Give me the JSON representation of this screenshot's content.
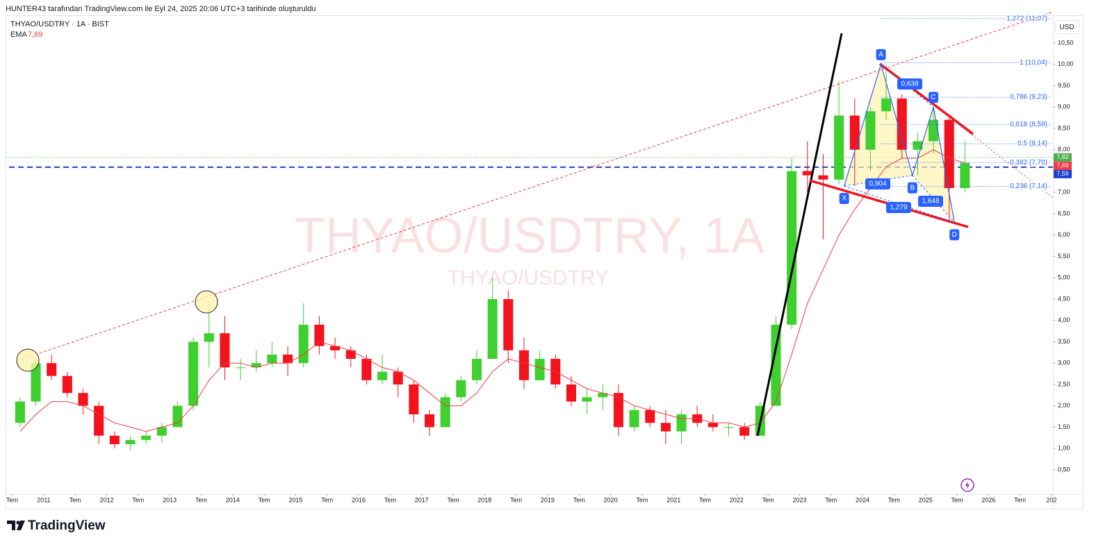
{
  "header": {
    "caption": "HUNTER43 tarafından TradingView.com ile Eyl 24, 2025 20:06 UTC+3 tarihinde oluşturuldu"
  },
  "footer": {
    "brand": "TradingView"
  },
  "chart_data": {
    "type": "candlestick",
    "title": "THYAO/USDTRY · 1A · BIST",
    "watermark": "THYAO/USDTRY, 1A",
    "watermark_sub": "THYAO/USDTRY",
    "currency": "USD",
    "x": [
      "2010-07",
      "2010-10",
      "2011-01",
      "2011-04",
      "2011-07",
      "2011-10",
      "2012-01",
      "2012-04",
      "2012-07",
      "2012-10",
      "2013-01",
      "2013-04",
      "2013-07",
      "2013-10",
      "2014-01",
      "2014-04",
      "2014-07",
      "2014-10",
      "2015-01",
      "2015-04",
      "2015-07",
      "2015-10",
      "2016-01",
      "2016-04",
      "2016-07",
      "2016-10",
      "2017-01",
      "2017-04",
      "2017-07",
      "2017-10",
      "2018-01",
      "2018-04",
      "2018-07",
      "2018-10",
      "2019-01",
      "2019-04",
      "2019-07",
      "2019-10",
      "2020-01",
      "2020-04",
      "2020-07",
      "2020-10",
      "2021-01",
      "2021-04",
      "2021-07",
      "2021-10",
      "2022-01",
      "2022-04",
      "2022-07",
      "2022-10",
      "2023-01",
      "2023-04",
      "2023-07",
      "2023-10",
      "2024-01",
      "2024-04",
      "2024-07",
      "2024-10",
      "2025-01",
      "2025-04",
      "2025-07"
    ],
    "open": [
      1.6,
      2.1,
      3.0,
      2.7,
      2.3,
      2.0,
      1.3,
      1.1,
      1.2,
      1.3,
      1.5,
      2.0,
      3.5,
      3.7,
      2.9,
      2.9,
      3.0,
      3.2,
      3.0,
      3.9,
      3.4,
      3.3,
      3.1,
      2.6,
      2.8,
      2.5,
      1.8,
      1.5,
      2.2,
      2.6,
      3.1,
      4.5,
      3.3,
      2.6,
      3.1,
      2.5,
      2.1,
      2.2,
      2.3,
      1.5,
      1.9,
      1.6,
      1.4,
      1.8,
      1.6,
      1.5,
      1.5,
      1.3,
      2.0,
      3.9,
      7.5,
      7.4,
      7.3,
      8.8,
      8.0,
      8.9,
      9.2,
      8.0,
      8.2,
      8.7,
      7.1
    ],
    "high": [
      2.2,
      3.1,
      3.2,
      2.8,
      2.4,
      2.1,
      1.4,
      1.3,
      1.4,
      1.6,
      2.1,
      3.6,
      4.45,
      4.1,
      3.1,
      3.3,
      3.5,
      3.4,
      4.4,
      4.1,
      3.6,
      3.4,
      3.2,
      3.2,
      2.9,
      2.6,
      1.9,
      2.3,
      2.7,
      3.3,
      5.0,
      4.7,
      3.6,
      3.3,
      3.2,
      2.7,
      2.4,
      2.5,
      2.5,
      2.0,
      2.0,
      1.9,
      1.9,
      2.0,
      1.8,
      1.6,
      1.6,
      2.1,
      4.1,
      7.8,
      8.2,
      7.9,
      9.6,
      9.2,
      9.0,
      10.0,
      9.3,
      8.4,
      9.0,
      8.8,
      8.2
    ],
    "low": [
      1.5,
      2.0,
      2.6,
      2.2,
      1.8,
      1.1,
      1.0,
      0.95,
      1.1,
      1.15,
      1.5,
      1.9,
      2.9,
      2.6,
      2.6,
      2.8,
      2.9,
      2.7,
      2.9,
      3.2,
      3.1,
      2.9,
      2.5,
      2.5,
      2.2,
      1.6,
      1.3,
      1.5,
      2.1,
      2.5,
      3.1,
      3.0,
      2.4,
      2.6,
      2.4,
      2.0,
      1.8,
      1.9,
      1.3,
      1.4,
      1.5,
      1.1,
      1.1,
      1.5,
      1.4,
      1.3,
      1.2,
      1.3,
      2.0,
      3.8,
      7.0,
      5.9,
      7.2,
      7.15,
      7.5,
      8.7,
      7.8,
      7.4,
      7.9,
      6.3,
      7.0
    ],
    "close": [
      2.1,
      3.0,
      2.7,
      2.3,
      2.0,
      1.3,
      1.1,
      1.2,
      1.3,
      1.5,
      2.0,
      3.5,
      3.7,
      2.9,
      2.9,
      3.0,
      3.2,
      3.0,
      3.9,
      3.4,
      3.3,
      3.1,
      2.6,
      2.8,
      2.5,
      1.8,
      1.5,
      2.2,
      2.6,
      3.1,
      4.5,
      3.3,
      2.6,
      3.1,
      2.5,
      2.1,
      2.2,
      2.3,
      1.5,
      1.9,
      1.6,
      1.4,
      1.8,
      1.6,
      1.5,
      1.5,
      1.3,
      2.0,
      3.9,
      7.5,
      7.4,
      7.3,
      8.8,
      8.0,
      8.9,
      9.2,
      8.0,
      8.2,
      8.7,
      7.1,
      7.69
    ],
    "up_color": "#3fcf2f",
    "down_color": "#f2131c",
    "ema": {
      "name": "EMA",
      "color": "#f23645",
      "value_label": "7,69",
      "values": [
        1.4,
        1.8,
        2.1,
        2.1,
        2.0,
        1.8,
        1.6,
        1.5,
        1.4,
        1.5,
        1.6,
        2.0,
        2.6,
        3.0,
        3.0,
        2.9,
        3.0,
        3.0,
        3.2,
        3.5,
        3.4,
        3.3,
        3.1,
        2.9,
        2.8,
        2.6,
        2.3,
        2.0,
        2.0,
        2.3,
        2.8,
        3.1,
        3.0,
        2.9,
        2.8,
        2.6,
        2.4,
        2.3,
        2.2,
        2.0,
        1.9,
        1.8,
        1.7,
        1.7,
        1.6,
        1.6,
        1.5,
        1.6,
        2.1,
        3.2,
        4.4,
        5.2,
        6.0,
        6.6,
        7.1,
        7.6,
        7.8,
        7.8,
        8.0,
        7.8,
        7.69
      ]
    },
    "ylim": [
      -0.07,
      11.15
    ],
    "yticks": [
      {
        "value": 0.5,
        "label": "0,50"
      },
      {
        "value": 1,
        "label": "1,00"
      },
      {
        "value": 1.5,
        "label": "1,50"
      },
      {
        "value": 2,
        "label": "2,00"
      },
      {
        "value": 2.5,
        "label": "2,50"
      },
      {
        "value": 3,
        "label": "3,00"
      },
      {
        "value": 3.5,
        "label": "3,50"
      },
      {
        "value": 4,
        "label": "4,00"
      },
      {
        "value": 4.5,
        "label": "4,50"
      },
      {
        "value": 5,
        "label": "5,00"
      },
      {
        "value": 5.5,
        "label": "5,50"
      },
      {
        "value": 6,
        "label": "6,00"
      },
      {
        "value": 6.5,
        "label": "6,50"
      },
      {
        "value": 7,
        "label": "7,00"
      },
      {
        "value": 7.5,
        "label": "7,50"
      },
      {
        "value": 8,
        "label": "8,00"
      },
      {
        "value": 8.5,
        "label": "8,50"
      },
      {
        "value": 9,
        "label": "9,00"
      },
      {
        "value": 9.5,
        "label": "9,50"
      },
      {
        "value": 10,
        "label": "10,00"
      },
      {
        "value": 10.5,
        "label": "10,50"
      }
    ],
    "xlim": [
      "2010-06",
      "2027-01"
    ],
    "xticks": [
      {
        "value": "2010-07",
        "label": "Tem"
      },
      {
        "value": "2011-01",
        "label": "2011"
      },
      {
        "value": "2011-07",
        "label": "Tem"
      },
      {
        "value": "2012-01",
        "label": "2012"
      },
      {
        "value": "2012-07",
        "label": "Tem"
      },
      {
        "value": "2013-01",
        "label": "2013"
      },
      {
        "value": "2013-07",
        "label": "Tem"
      },
      {
        "value": "2014-01",
        "label": "2014"
      },
      {
        "value": "2014-07",
        "label": "Tem"
      },
      {
        "value": "2015-01",
        "label": "2015"
      },
      {
        "value": "2015-07",
        "label": "Tem"
      },
      {
        "value": "2016-01",
        "label": "2016"
      },
      {
        "value": "2016-07",
        "label": "Tem"
      },
      {
        "value": "2017-01",
        "label": "2017"
      },
      {
        "value": "2017-07",
        "label": "Tem"
      },
      {
        "value": "2018-01",
        "label": "2018"
      },
      {
        "value": "2018-07",
        "label": "Tem"
      },
      {
        "value": "2019-01",
        "label": "2019"
      },
      {
        "value": "2019-07",
        "label": "Tem"
      },
      {
        "value": "2020-01",
        "label": "2020"
      },
      {
        "value": "2020-07",
        "label": "Tem"
      },
      {
        "value": "2021-01",
        "label": "2021"
      },
      {
        "value": "2021-07",
        "label": "Tem"
      },
      {
        "value": "2022-01",
        "label": "2022"
      },
      {
        "value": "2022-07",
        "label": "Tem"
      },
      {
        "value": "2023-01",
        "label": "2023"
      },
      {
        "value": "2023-07",
        "label": "Tem"
      },
      {
        "value": "2024-01",
        "label": "2024"
      },
      {
        "value": "2024-07",
        "label": "Tem"
      },
      {
        "value": "2025-01",
        "label": "2025"
      },
      {
        "value": "2025-07",
        "label": "Tem"
      },
      {
        "value": "2026-01",
        "label": "2026"
      },
      {
        "value": "2026-07",
        "label": "Tem"
      },
      {
        "value": "2027-01",
        "label": "202"
      }
    ],
    "fib": {
      "color": "#2962ff",
      "levels": [
        {
          "value": 11.07,
          "label": "1,272 (11,07)"
        },
        {
          "value": 10.04,
          "label": "1 (10,04)"
        },
        {
          "value": 9.23,
          "label": "0,786 (9,23)"
        },
        {
          "value": 8.59,
          "label": "0,618 (8,59)"
        },
        {
          "value": 8.14,
          "label": "0,5 (8,14)"
        },
        {
          "value": 7.7,
          "label": "0,382 (7,70)"
        },
        {
          "value": 7.14,
          "label": "0,236 (7,14)"
        }
      ]
    },
    "price_labels": [
      {
        "value": 7.82,
        "label": "7,82",
        "color": "#4caf50",
        "style": "dotted"
      },
      {
        "value": 7.69,
        "label": "7,69",
        "color": "#f23645"
      },
      {
        "value": 7.59,
        "label": "7,59",
        "color": "#1a3fd1",
        "style": "dashed"
      }
    ],
    "pattern": {
      "color": "#2962ff",
      "points": [
        {
          "label": "X",
          "x": "2023-09",
          "value": 7.15
        },
        {
          "label": "A",
          "x": "2024-04",
          "value": 10.0
        },
        {
          "label": "B",
          "x": "2024-10",
          "value": 7.4
        },
        {
          "label": "C",
          "x": "2025-02",
          "value": 9.0
        },
        {
          "label": "D",
          "x": "2025-06",
          "value": 6.3
        }
      ],
      "ratios": [
        "0,904",
        "0,638",
        "1,648",
        "1,279"
      ]
    }
  }
}
